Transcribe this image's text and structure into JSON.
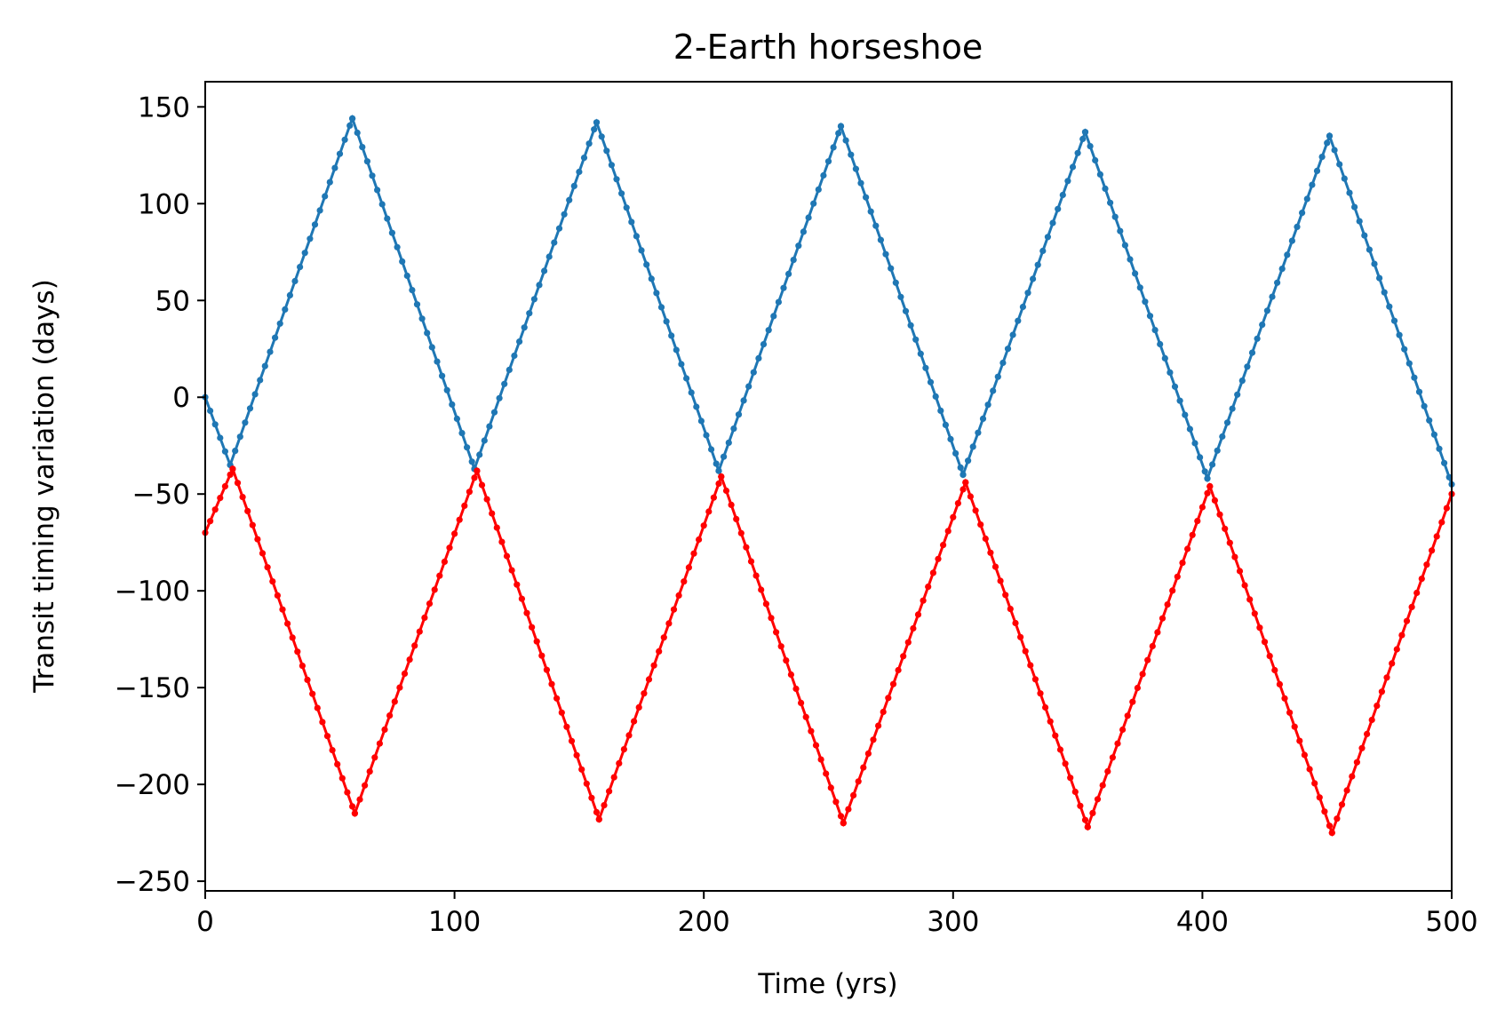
{
  "chart_data": {
    "type": "scatter",
    "title": "2-Earth horseshoe",
    "xlabel": "Time (yrs)",
    "ylabel": "Transit timing variation (days)",
    "xlim": [
      0,
      500
    ],
    "ylim": [
      -255,
      163
    ],
    "xticks": [
      0,
      100,
      200,
      300,
      400,
      500
    ],
    "xtick_labels": [
      "0",
      "100",
      "200",
      "300",
      "400",
      "500"
    ],
    "yticks": [
      150,
      100,
      50,
      0,
      -50,
      -100,
      -150,
      -200,
      -250
    ],
    "ytick_labels": [
      "150",
      "100",
      "50",
      "0",
      "−50",
      "−100",
      "−150",
      "−200",
      "−250"
    ],
    "grid": false,
    "sample_step_yrs": 2,
    "series": [
      {
        "color": "#1f77b4",
        "vertices": [
          [
            0,
            0
          ],
          [
            10,
            -35
          ],
          [
            59,
            144
          ],
          [
            108,
            -37
          ],
          [
            157,
            142
          ],
          [
            206,
            -38
          ],
          [
            255,
            140
          ],
          [
            304,
            -40
          ],
          [
            353,
            137
          ],
          [
            402,
            -42
          ],
          [
            451,
            135
          ],
          [
            500,
            -45
          ]
        ]
      },
      {
        "color": "#ff0000",
        "vertices": [
          [
            0,
            -70
          ],
          [
            11,
            -37
          ],
          [
            60,
            -215
          ],
          [
            109,
            -38
          ],
          [
            158,
            -218
          ],
          [
            207,
            -41
          ],
          [
            256,
            -220
          ],
          [
            305,
            -44
          ],
          [
            354,
            -222
          ],
          [
            403,
            -46
          ],
          [
            452,
            -225
          ],
          [
            500,
            -50
          ]
        ]
      }
    ]
  }
}
